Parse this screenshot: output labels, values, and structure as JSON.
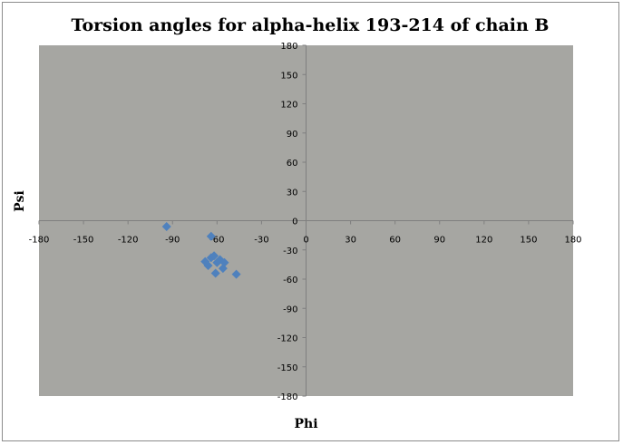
{
  "chart_data": {
    "type": "scatter",
    "title": "Torsion angles for alpha-helix 193-214 of chain B",
    "xlabel": "Phi",
    "ylabel": "Psi",
    "xlim": [
      -180,
      180
    ],
    "ylim": [
      -180,
      180
    ],
    "x_ticks": [
      -180,
      -150,
      -120,
      -90,
      -60,
      -30,
      0,
      30,
      60,
      90,
      120,
      150,
      180
    ],
    "y_ticks": [
      180,
      150,
      120,
      90,
      60,
      30,
      0,
      -30,
      -60,
      -90,
      -120,
      -150,
      -180
    ],
    "grid": false,
    "legend": "none",
    "plot_bg": "#a6a6a2",
    "marker_color": "#4f81bd",
    "marker": "diamond",
    "series": [
      {
        "points": [
          {
            "x": -94,
            "y": -6
          },
          {
            "x": -64,
            "y": -16
          },
          {
            "x": -68,
            "y": -42
          },
          {
            "x": -66,
            "y": -46
          },
          {
            "x": -64,
            "y": -38
          },
          {
            "x": -62,
            "y": -36
          },
          {
            "x": -60,
            "y": -43
          },
          {
            "x": -58,
            "y": -40
          },
          {
            "x": -56,
            "y": -49
          },
          {
            "x": -55,
            "y": -43
          },
          {
            "x": -61,
            "y": -54
          },
          {
            "x": -47,
            "y": -55
          }
        ]
      }
    ]
  }
}
